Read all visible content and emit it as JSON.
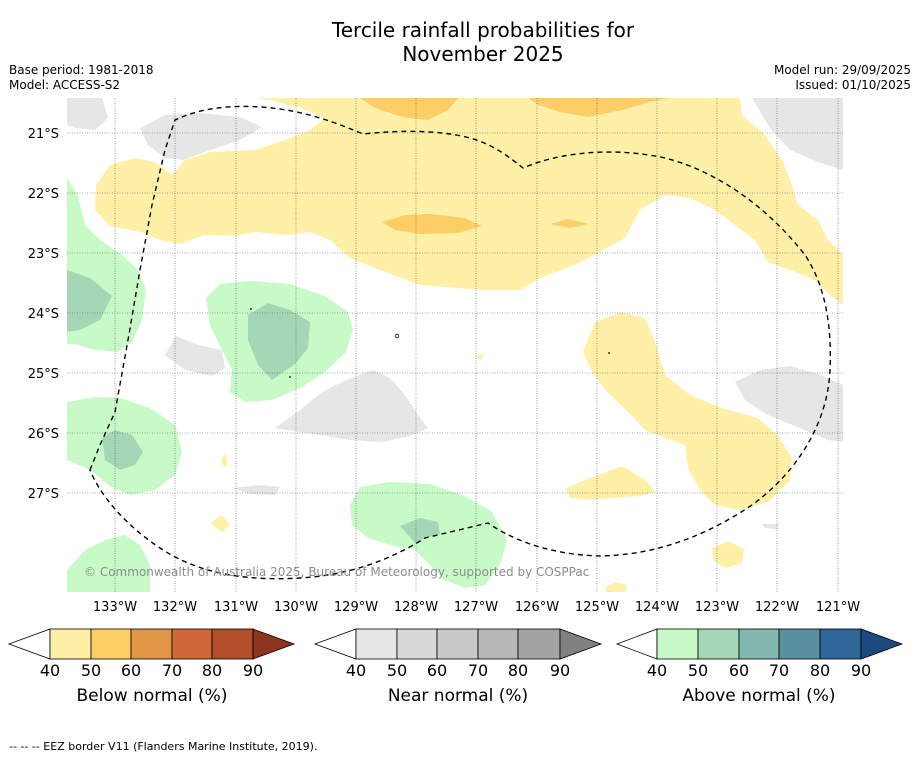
{
  "title_line1": "Tercile rainfall probabilities for",
  "title_line2": "November 2025",
  "base_period": "Base period: 1981-2018",
  "model": "Model: ACCESS-S2",
  "model_run": "Model run: 29/09/2025",
  "issued": "Issued: 01/10/2025",
  "credit": "© Commonwealth of Australia 2025, Bureau of Meteorology, supported by COSPPac",
  "lat_labels": [
    "21°S",
    "22°S",
    "23°S",
    "24°S",
    "25°S",
    "26°S",
    "27°S"
  ],
  "lon_labels": [
    "133°W",
    "132°W",
    "131°W",
    "130°W",
    "129°W",
    "128°W",
    "127°W",
    "126°W",
    "125°W",
    "124°W",
    "123°W",
    "122°W",
    "121°W"
  ],
  "colorbars": [
    {
      "title": "Below normal (%)",
      "ticks": [
        "40",
        "50",
        "60",
        "70",
        "80",
        "90"
      ],
      "colors": [
        "#fff0a8",
        "#fdcd66",
        "#e19748",
        "#cf6939",
        "#b34e2b",
        "#8e3520"
      ]
    },
    {
      "title": "Near normal (%)",
      "ticks": [
        "40",
        "50",
        "60",
        "70",
        "80",
        "90"
      ],
      "colors": [
        "#e6e6e6",
        "#d8d8d8",
        "#c8c8c8",
        "#b8b8b8",
        "#a3a3a3",
        "#808080"
      ]
    },
    {
      "title": "Above normal (%)",
      "ticks": [
        "40",
        "50",
        "60",
        "70",
        "80",
        "90"
      ],
      "colors": [
        "#c8fac8",
        "#a3d7b5",
        "#82b8b0",
        "#5a90a0",
        "#2f6597",
        "#1c4a7e"
      ]
    }
  ],
  "footer": "--  --  -- EEZ border V11 (Flanders Marine Institute, 2019)."
}
